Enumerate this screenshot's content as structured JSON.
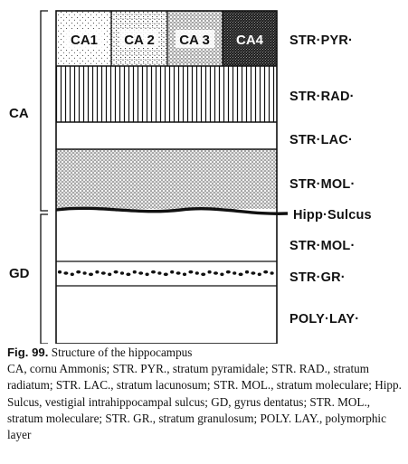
{
  "diagram": {
    "side_labels": {
      "ca": "CA",
      "gd": "GD"
    },
    "ca_regions": [
      "CA1",
      "CA 2",
      "CA 3",
      "CA4"
    ],
    "layers": {
      "str_pyr": "STR·PYR·",
      "str_rad": "STR·RAD·",
      "str_lac": "STR·LAC·",
      "str_mol_ca": "STR·MOL·",
      "hipp_sulcus": "Hipp·Sulcus",
      "str_mol_gd": "STR·MOL·",
      "str_gr": "STR·GR·",
      "poly_lay": "POLY·LAY·"
    }
  },
  "caption": {
    "fig_number": "Fig. 99.",
    "title": " Structure of the hippocampus",
    "body": "CA, cornu Ammonis; STR. PYR., stratum pyramidale; STR. RAD., stratum radiatum; STR. LAC., stratum lacunosum; STR. MOL., stratum moleculare; Hipp. Sulcus, vestigial intrahippocampal sulcus; GD, gyrus dentatus; STR. MOL., stratum moleculare; STR. GR., stratum granulosum; POLY. LAY., polymorphic layer"
  }
}
